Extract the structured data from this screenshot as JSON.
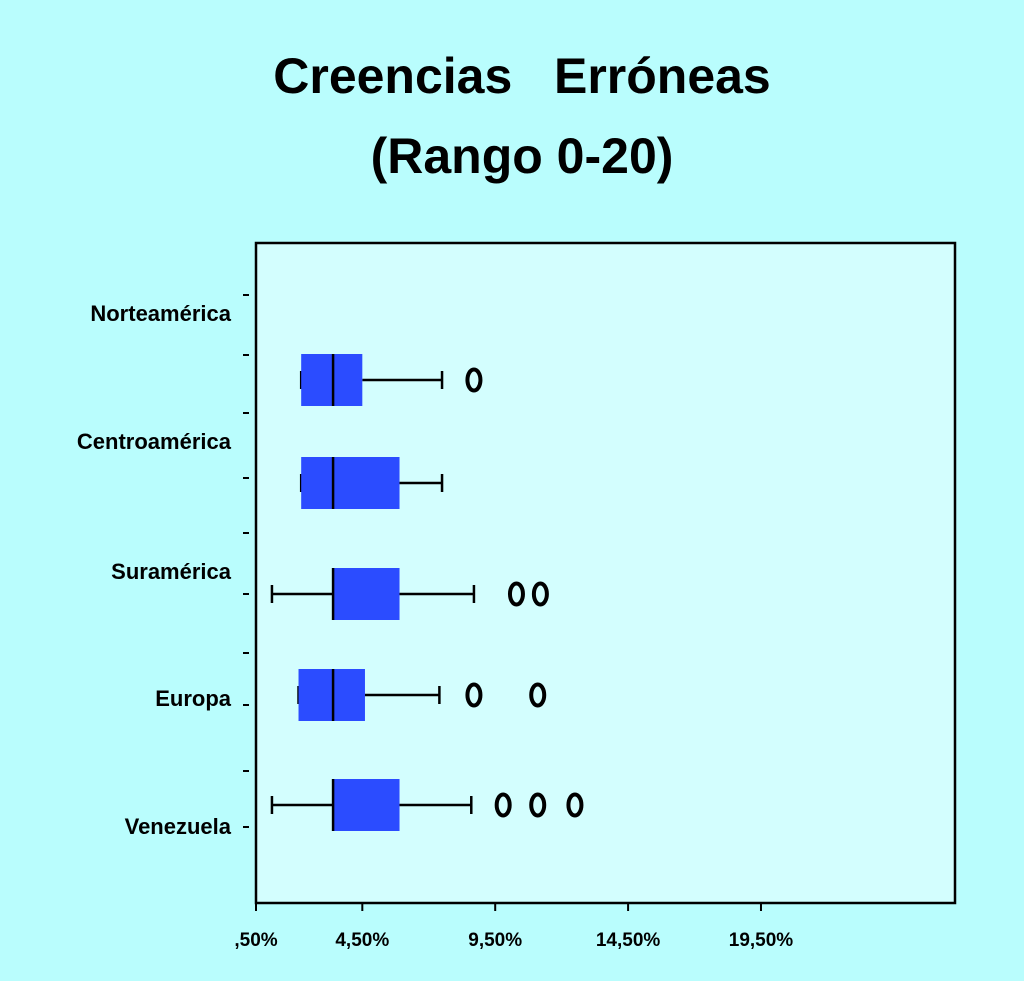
{
  "chart_data": {
    "type": "box",
    "title": "Creencias   Erróneas",
    "subtitle": "(Rango 0-20)",
    "categories": [
      "Norteamérica",
      "Centroamérica",
      "Suramérica",
      "Europa",
      "Venezuela"
    ],
    "color": "#2b4cff",
    "boxes": [
      {
        "min": 2.2,
        "q1": 2.2,
        "median": 3.4,
        "q3": 4.5,
        "max": 7.5,
        "outliers": [
          8.7
        ]
      },
      {
        "min": 2.2,
        "q1": 2.2,
        "median": 3.4,
        "q3": 5.9,
        "max": 7.5,
        "outliers": []
      },
      {
        "min": 1.1,
        "q1": 3.4,
        "median": 3.4,
        "q3": 5.9,
        "max": 8.7,
        "outliers": [
          10.3,
          11.2
        ]
      },
      {
        "min": 2.1,
        "q1": 2.1,
        "median": 3.4,
        "q3": 4.6,
        "max": 7.4,
        "outliers": [
          8.7,
          11.1
        ]
      },
      {
        "min": 1.1,
        "q1": 3.4,
        "median": 3.4,
        "q3": 5.9,
        "max": 8.6,
        "outliers": [
          9.8,
          11.1,
          12.5
        ]
      }
    ],
    "xlim": [
      0.5,
      26.8
    ],
    "xticks": [
      {
        "value": 0.5,
        "label": ",50%"
      },
      {
        "value": 4.5,
        "label": "4,50%"
      },
      {
        "value": 9.5,
        "label": "9,50%"
      },
      {
        "value": 14.5,
        "label": "14,50%"
      },
      {
        "value": 19.5,
        "label": "19,50%"
      }
    ]
  }
}
